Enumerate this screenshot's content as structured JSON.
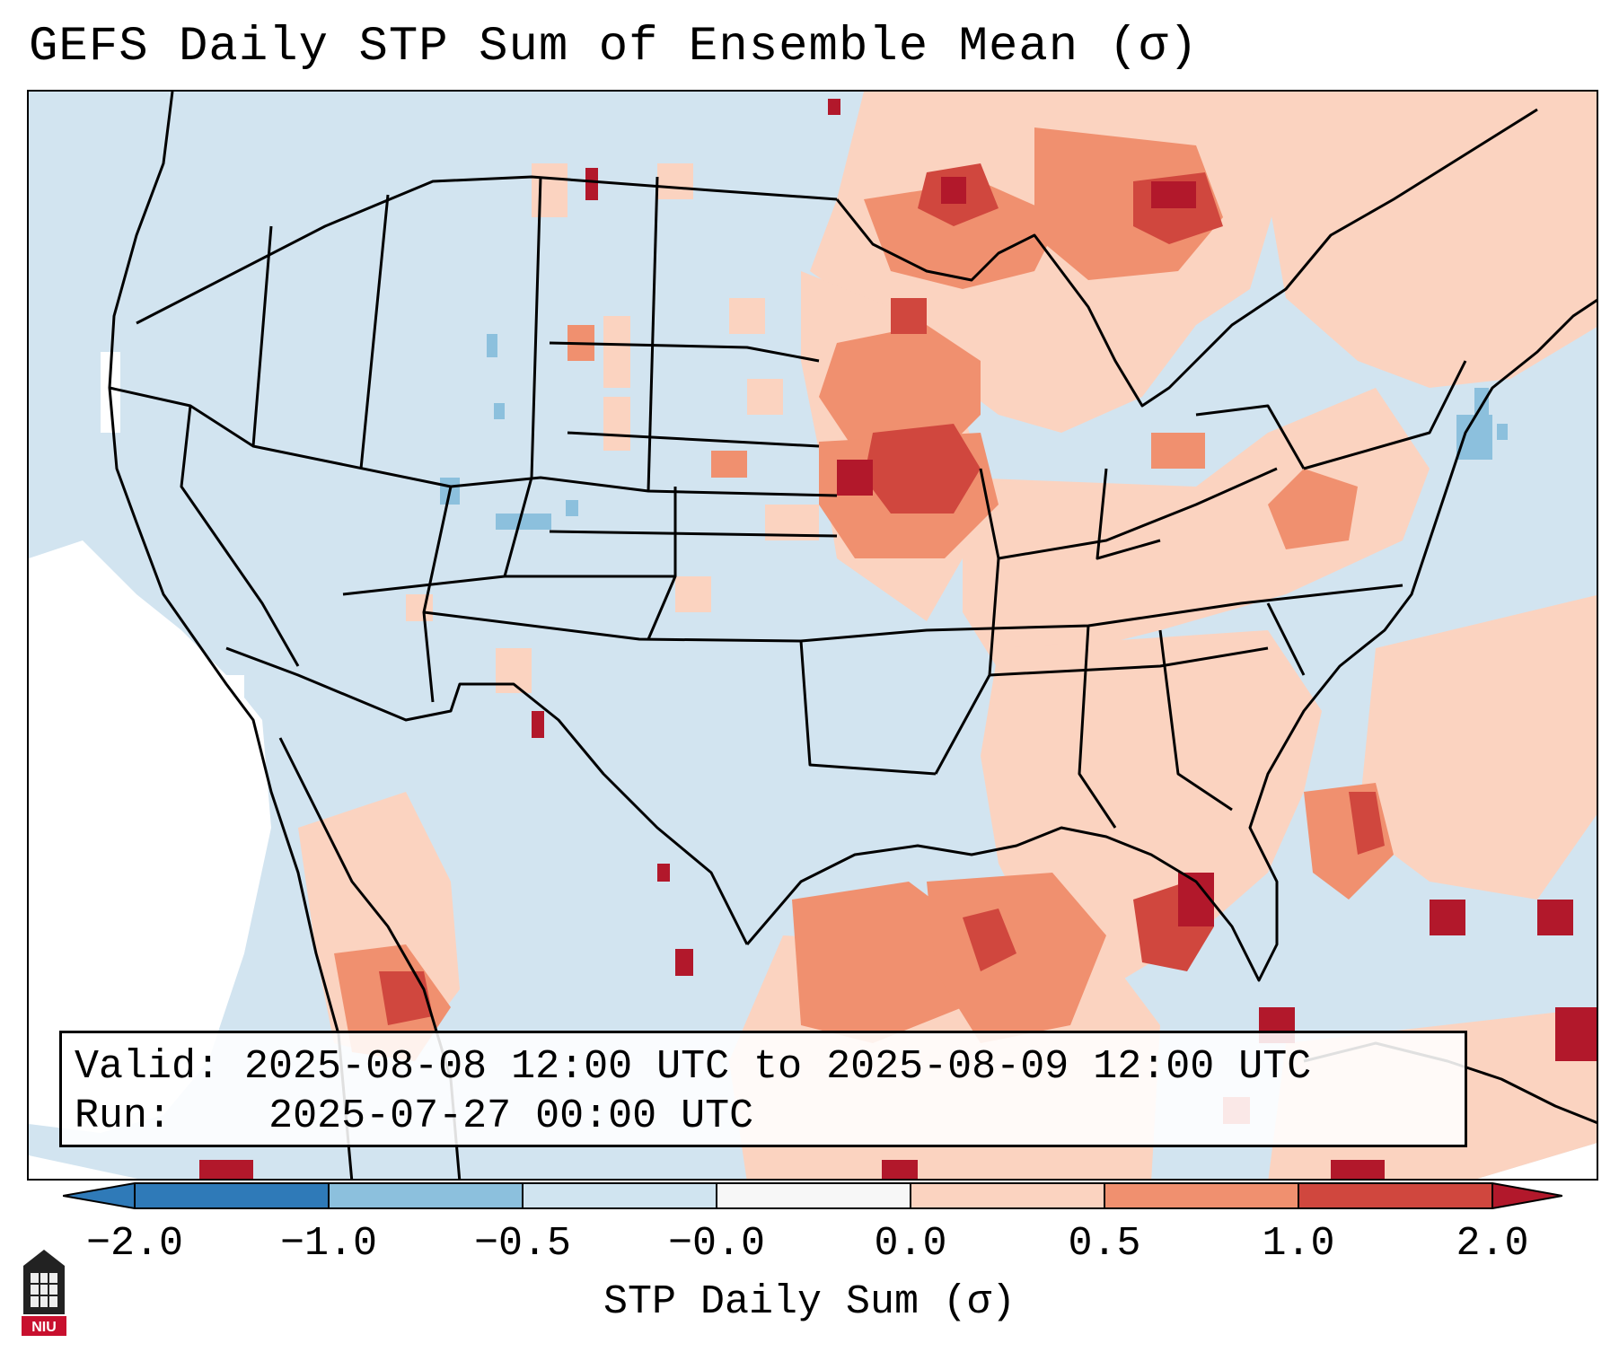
{
  "title": "GEFS Daily STP Sum of Ensemble Mean (σ)",
  "info": {
    "valid_label": "Valid:",
    "valid_value": "2025-08-08 12:00 UTC to 2025-08-09 12:00 UTC",
    "run_label": "Run:",
    "run_value": "2025-07-27 00:00 UTC"
  },
  "colorbar": {
    "label": "STP Daily Sum (σ)",
    "ticks": [
      "−2.0",
      "−1.0",
      "−0.5",
      "−0.0",
      "0.0",
      "0.5",
      "1.0",
      "2.0"
    ],
    "colors": [
      "#2f7ab8",
      "#8cc0dd",
      "#d0e4f0",
      "#f7f7f7",
      "#fbd3c0",
      "#f0906f",
      "#d0473e",
      "#b2182b"
    ]
  },
  "logo_text": "NIU"
}
